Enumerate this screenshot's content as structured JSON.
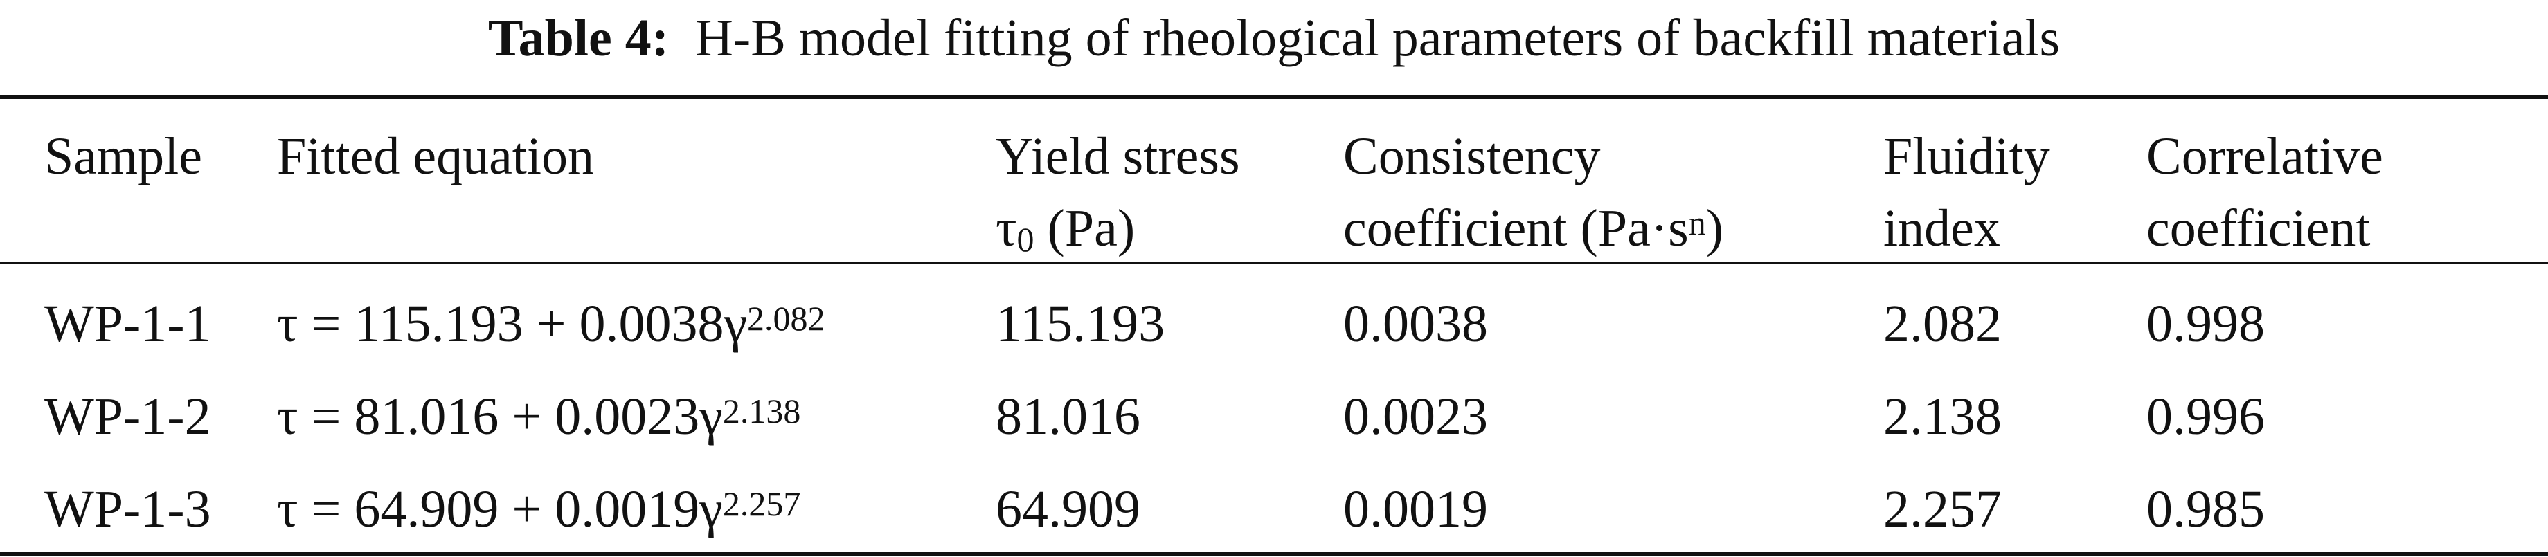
{
  "caption": {
    "label": "Table 4:",
    "text": "H-B model fitting of rheological parameters of backfill materials"
  },
  "header": {
    "sample": "Sample",
    "equation": "Fitted equation",
    "yield_line1": "Yield stress",
    "yield_symbol": "τ",
    "yield_sub": "0",
    "yield_unit": "(Pa)",
    "consistency_line1": "Consistency",
    "consistency_line2": "coefficient (Pa·s",
    "consistency_sup": "n",
    "consistency_close": ")",
    "fluidity_line1": "Fluidity",
    "fluidity_line2": "index",
    "correlative_line1": "Correlative",
    "correlative_line2": "coefficient"
  },
  "rows": [
    {
      "sample": "WP-1-1",
      "equation": "τ = 115.193 + 0.0038γ",
      "exponent": "2.082",
      "yield_stress": "115.193",
      "consistency": "0.0038",
      "fluidity": "2.082",
      "correlative": "0.998"
    },
    {
      "sample": "WP-1-2",
      "equation": "τ = 81.016 + 0.0023γ",
      "exponent": "2.138",
      "yield_stress": "81.016",
      "consistency": "0.0023",
      "fluidity": "2.138",
      "correlative": "0.996"
    },
    {
      "sample": "WP-1-3",
      "equation": "τ = 64.909 + 0.0019γ",
      "exponent": "2.257",
      "yield_stress": "64.909",
      "consistency": "0.0019",
      "fluidity": "2.257",
      "correlative": "0.985"
    }
  ]
}
